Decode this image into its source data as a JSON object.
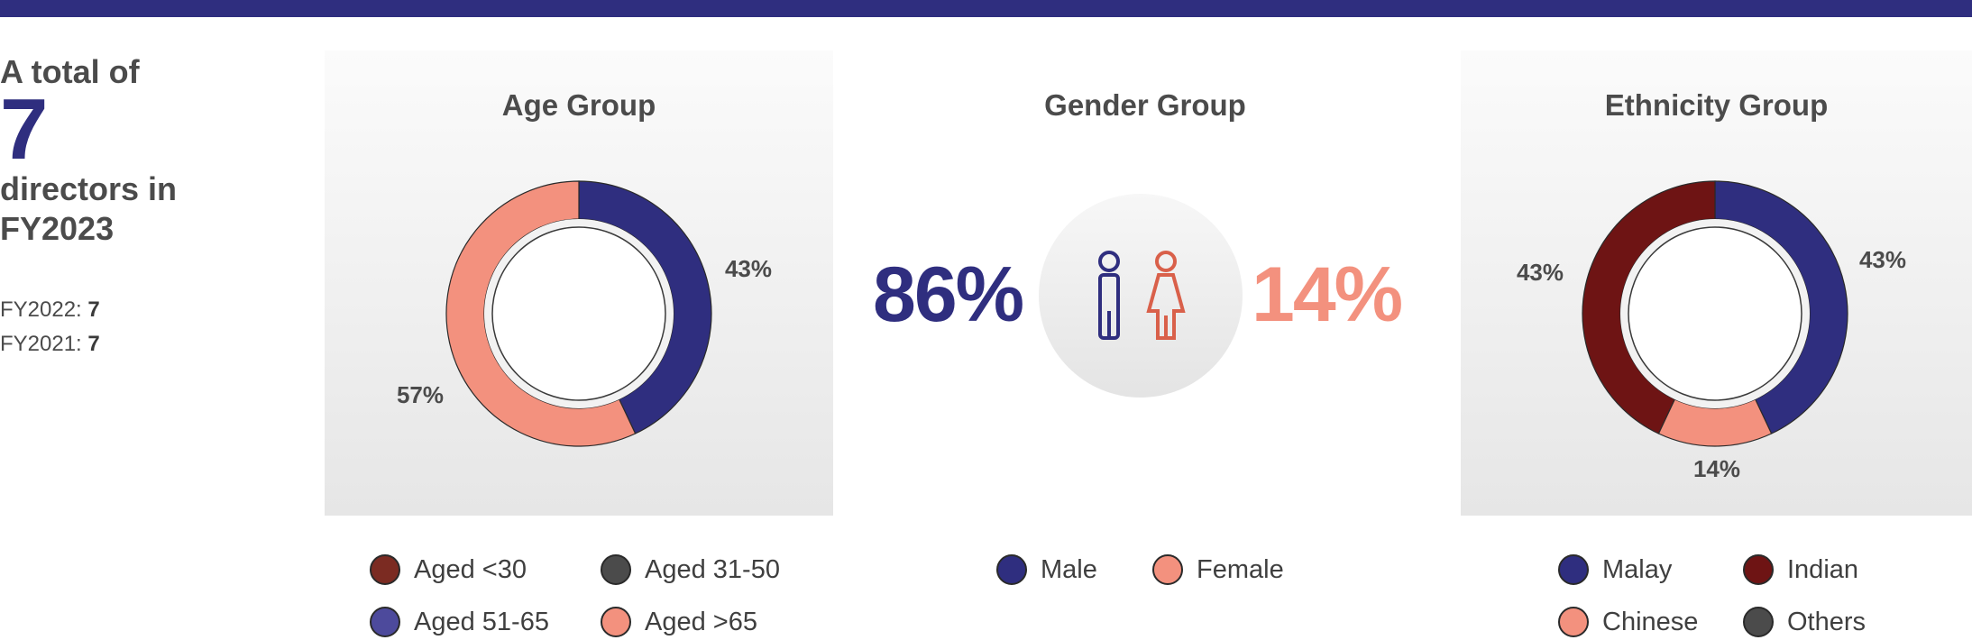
{
  "summary": {
    "line1": "A total of",
    "count": "7",
    "line2": "directors in",
    "line3": "FY2023",
    "prev": [
      {
        "label": "FY2022:",
        "value": "7"
      },
      {
        "label": "FY2021:",
        "value": "7"
      }
    ]
  },
  "colors": {
    "navy": "#2f2e7f",
    "salmon": "#f3917e",
    "maroon": "#6e1414",
    "rust": "#7b2b22",
    "dark_gray": "#4b4b4b",
    "purple": "#4d4a9c"
  },
  "chart_data": [
    {
      "type": "pie",
      "style": "donut",
      "title": "Age Group",
      "slices": [
        {
          "label": "Aged 51-65",
          "value": 43,
          "display": "43%",
          "color": "#2f2e7f"
        },
        {
          "label": "Aged >65",
          "value": 57,
          "display": "57%",
          "color": "#f3917e"
        }
      ],
      "legend": [
        {
          "label": "Aged <30",
          "color": "#7b2b22"
        },
        {
          "label": "Aged 31-50",
          "color": "#4b4b4b"
        },
        {
          "label": "Aged 51-65",
          "color": "#4d4a9c"
        },
        {
          "label": "Aged >65",
          "color": "#f3917e"
        }
      ]
    },
    {
      "type": "pie",
      "style": "percentage-display",
      "title": "Gender Group",
      "slices": [
        {
          "label": "Male",
          "value": 86,
          "display": "86%",
          "color": "#2f2e7f"
        },
        {
          "label": "Female",
          "value": 14,
          "display": "14%",
          "color": "#f3917e"
        }
      ],
      "legend": [
        {
          "label": "Male",
          "color": "#2f2e7f"
        },
        {
          "label": "Female",
          "color": "#f3917e"
        }
      ]
    },
    {
      "type": "pie",
      "style": "donut",
      "title": "Ethnicity Group",
      "slices": [
        {
          "label": "Malay",
          "value": 43,
          "display": "43%",
          "color": "#2f2e7f"
        },
        {
          "label": "Chinese",
          "value": 14,
          "display": "14%",
          "color": "#f3917e"
        },
        {
          "label": "Indian",
          "value": 43,
          "display": "43%",
          "color": "#6e1414"
        }
      ],
      "legend": [
        {
          "label": "Malay",
          "color": "#2f2e7f"
        },
        {
          "label": "Indian",
          "color": "#6e1414"
        },
        {
          "label": "Chinese",
          "color": "#f3917e"
        },
        {
          "label": "Others",
          "color": "#4b4b4b"
        }
      ]
    }
  ]
}
